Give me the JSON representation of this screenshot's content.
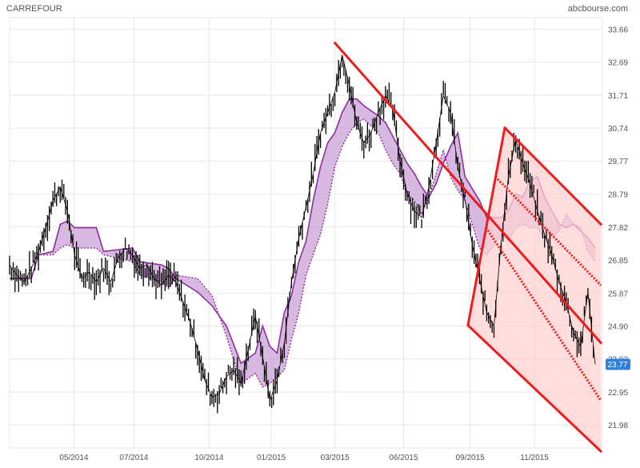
{
  "header": {
    "title": "CARREFOUR",
    "source": "abcbourse.com"
  },
  "chart_data": {
    "type": "candlestick",
    "title": "CARREFOUR",
    "source_label": "abcbourse.com",
    "grid": true,
    "y_axis_side": "right",
    "ylim": [
      21.3,
      34.0
    ],
    "y_ticks": [
      33.66,
      32.69,
      31.71,
      30.74,
      29.77,
      28.79,
      27.82,
      26.85,
      25.87,
      24.9,
      23.93,
      22.95,
      21.98
    ],
    "x_ticks": [
      "05/2014",
      "07/2014",
      "10/2014",
      "01/2015",
      "03/2015",
      "06/2015",
      "09/2015",
      "11/2015"
    ],
    "x_tick_pos": [
      8.9,
      17.2,
      27.6,
      36.2,
      45.0,
      54.5,
      63.7,
      72.6
    ],
    "xlim": [
      0,
      82
    ],
    "last_price": "23.77",
    "price_series": [
      [
        0,
        26.7
      ],
      [
        1,
        26.4
      ],
      [
        2,
        26.2
      ],
      [
        3,
        26.6
      ],
      [
        4,
        27.1
      ],
      [
        5,
        27.8
      ],
      [
        6,
        28.6
      ],
      [
        7,
        29.0
      ],
      [
        8,
        28.3
      ],
      [
        9,
        27.0
      ],
      [
        10,
        26.3
      ],
      [
        11,
        26.5
      ],
      [
        12,
        26.2
      ],
      [
        13,
        26.6
      ],
      [
        14,
        26.2
      ],
      [
        15,
        26.9
      ],
      [
        16,
        27.2
      ],
      [
        17,
        27.0
      ],
      [
        18,
        26.6
      ],
      [
        19,
        26.7
      ],
      [
        20,
        26.3
      ],
      [
        21,
        26.1
      ],
      [
        22,
        26.4
      ],
      [
        23,
        26.2
      ],
      [
        24,
        25.6
      ],
      [
        25,
        25.0
      ],
      [
        26,
        24.2
      ],
      [
        27,
        23.3
      ],
      [
        28,
        22.8
      ],
      [
        29,
        22.9
      ],
      [
        30,
        23.4
      ],
      [
        31,
        23.6
      ],
      [
        32,
        23.2
      ],
      [
        33,
        24.2
      ],
      [
        34,
        25.2
      ],
      [
        35,
        24.0
      ],
      [
        36,
        22.7
      ],
      [
        37,
        23.3
      ],
      [
        38,
        24.4
      ],
      [
        39,
        26.2
      ],
      [
        40,
        27.5
      ],
      [
        41,
        28.4
      ],
      [
        42,
        29.4
      ],
      [
        43,
        30.6
      ],
      [
        44,
        31.2
      ],
      [
        45,
        31.8
      ],
      [
        46,
        32.9
      ],
      [
        47,
        32.0
      ],
      [
        48,
        30.9
      ],
      [
        49,
        30.3
      ],
      [
        50,
        30.6
      ],
      [
        51,
        31.2
      ],
      [
        52,
        31.7
      ],
      [
        53,
        31.3
      ],
      [
        54,
        29.8
      ],
      [
        55,
        28.8
      ],
      [
        56,
        28.3
      ],
      [
        57,
        28.1
      ],
      [
        58,
        29.0
      ],
      [
        59,
        30.3
      ],
      [
        60,
        31.7
      ],
      [
        61,
        31.2
      ],
      [
        62,
        29.6
      ],
      [
        63,
        28.6
      ],
      [
        64,
        27.3
      ],
      [
        65,
        26.3
      ],
      [
        66,
        25.3
      ],
      [
        67,
        24.9
      ],
      [
        68,
        27.4
      ],
      [
        69,
        29.3
      ],
      [
        70,
        30.4
      ],
      [
        71,
        29.7
      ],
      [
        72,
        29.1
      ],
      [
        73,
        28.3
      ],
      [
        74,
        27.6
      ],
      [
        75,
        27.0
      ],
      [
        76,
        26.2
      ],
      [
        77,
        25.6
      ],
      [
        78,
        24.7
      ],
      [
        79,
        24.3
      ],
      [
        80,
        25.9
      ],
      [
        81,
        23.77
      ]
    ],
    "cloud_a": [
      [
        0,
        26.3
      ],
      [
        3,
        26.3
      ],
      [
        4,
        27.0
      ],
      [
        6,
        27.1
      ],
      [
        7,
        27.9
      ],
      [
        8,
        28.0
      ],
      [
        9,
        27.8
      ],
      [
        12,
        27.8
      ],
      [
        13,
        27.1
      ],
      [
        17,
        27.2
      ],
      [
        18,
        26.8
      ],
      [
        21,
        26.7
      ],
      [
        22,
        26.6
      ],
      [
        23,
        26.3
      ],
      [
        26,
        25.9
      ],
      [
        28,
        25.5
      ],
      [
        30,
        24.9
      ],
      [
        32,
        23.8
      ],
      [
        34,
        24.1
      ],
      [
        35,
        24.9
      ],
      [
        36,
        24.3
      ],
      [
        37,
        24.1
      ],
      [
        38,
        25.3
      ],
      [
        39,
        25.8
      ],
      [
        40,
        26.8
      ],
      [
        41,
        27.4
      ],
      [
        42,
        28.6
      ],
      [
        43,
        29.6
      ],
      [
        44,
        30.3
      ],
      [
        45,
        30.6
      ],
      [
        46,
        31.2
      ],
      [
        47,
        31.6
      ],
      [
        48,
        31.6
      ],
      [
        49,
        31.4
      ],
      [
        51,
        31.1
      ],
      [
        52,
        30.9
      ],
      [
        53,
        30.5
      ],
      [
        54,
        30.1
      ],
      [
        55,
        29.7
      ],
      [
        56,
        29.4
      ],
      [
        57,
        29.0
      ],
      [
        58,
        28.7
      ],
      [
        59,
        29.1
      ],
      [
        60,
        29.7
      ],
      [
        61,
        30.2
      ],
      [
        62,
        30.6
      ],
      [
        63,
        29.3
      ],
      [
        65,
        28.6
      ],
      [
        66,
        28.1
      ],
      [
        68,
        28.1
      ],
      [
        69,
        28.3
      ],
      [
        70,
        28.8
      ],
      [
        71,
        28.7
      ],
      [
        72,
        29.2
      ],
      [
        73,
        29.3
      ],
      [
        74,
        28.7
      ],
      [
        75,
        28.3
      ],
      [
        76,
        27.9
      ],
      [
        77,
        27.8
      ],
      [
        78,
        27.9
      ],
      [
        79,
        27.7
      ],
      [
        80,
        27.5
      ],
      [
        81,
        27.2
      ]
    ],
    "cloud_b": [
      [
        0,
        26.3
      ],
      [
        3,
        26.3
      ],
      [
        4,
        27.0
      ],
      [
        6,
        27.0
      ],
      [
        7,
        27.2
      ],
      [
        8,
        27.3
      ],
      [
        9,
        27.2
      ],
      [
        12,
        27.2
      ],
      [
        13,
        27.0
      ],
      [
        17,
        26.8
      ],
      [
        18,
        26.4
      ],
      [
        21,
        26.2
      ],
      [
        22,
        26.0
      ],
      [
        23,
        26.4
      ],
      [
        26,
        26.3
      ],
      [
        28,
        25.8
      ],
      [
        30,
        24.6
      ],
      [
        32,
        23.2
      ],
      [
        34,
        23.5
      ],
      [
        35,
        23.1
      ],
      [
        36,
        23.2
      ],
      [
        37,
        23.4
      ],
      [
        38,
        23.6
      ],
      [
        39,
        24.5
      ],
      [
        40,
        25.3
      ],
      [
        41,
        26.4
      ],
      [
        42,
        27.0
      ],
      [
        43,
        27.6
      ],
      [
        44,
        28.5
      ],
      [
        45,
        29.6
      ],
      [
        46,
        30.2
      ],
      [
        47,
        30.6
      ],
      [
        48,
        30.9
      ],
      [
        49,
        31.0
      ],
      [
        51,
        30.6
      ],
      [
        52,
        30.1
      ],
      [
        53,
        29.7
      ],
      [
        54,
        29.4
      ],
      [
        55,
        28.8
      ],
      [
        56,
        28.6
      ],
      [
        57,
        28.2
      ],
      [
        58,
        28.7
      ],
      [
        59,
        29.4
      ],
      [
        60,
        30.1
      ],
      [
        61,
        29.3
      ],
      [
        62,
        28.9
      ],
      [
        63,
        28.6
      ],
      [
        65,
        27.2
      ],
      [
        66,
        27.0
      ],
      [
        68,
        27.6
      ],
      [
        69,
        27.4
      ],
      [
        70,
        27.8
      ],
      [
        71,
        27.9
      ],
      [
        72,
        27.8
      ],
      [
        73,
        27.8
      ],
      [
        74,
        27.5
      ],
      [
        75,
        27.5
      ],
      [
        76,
        27.7
      ],
      [
        77,
        28.2
      ],
      [
        78,
        27.9
      ],
      [
        79,
        27.8
      ],
      [
        80,
        27.1
      ],
      [
        81,
        26.8
      ]
    ],
    "channels": [
      {
        "name": "downtrend",
        "lines": [
          {
            "from": [
              45.0,
              33.25
            ],
            "to": [
              81.8,
              24.4
            ],
            "style": "solid"
          },
          {
            "from": [
              68.5,
              30.75
            ],
            "to": [
              81.8,
              27.9
            ],
            "style": "solid"
          }
        ]
      },
      {
        "name": "pitchfork",
        "pivot_top": [
          68.5,
          30.75
        ],
        "pivot_bottom": [
          63.4,
          24.92
        ],
        "end": [
          81.8,
          21.2
        ],
        "inner_lines": [
          {
            "from": [
              65.9,
              27.8
            ],
            "to": [
              81.8,
              22.7
            ],
            "style": "dotted"
          },
          {
            "from": [
              67.2,
              29.3
            ],
            "to": [
              81.8,
              26.1
            ],
            "style": "dotted"
          }
        ],
        "edge_lines": [
          {
            "from": [
              63.4,
              24.92
            ],
            "to": [
              68.5,
              30.75
            ],
            "style": "solid"
          },
          {
            "from": [
              63.4,
              24.92
            ],
            "to": [
              81.8,
              21.2
            ],
            "style": "solid"
          }
        ]
      }
    ],
    "colors": {
      "price": "#000000",
      "cloud_fill": "#c9a0d6",
      "cloud_edge": "#8d2f9b",
      "trendline": "#ee1c1c",
      "channel_fill": "#ffd2d2",
      "grid": "#e6e6e6",
      "axis_text": "#555555",
      "last_price_bg": "#2f7fdd"
    }
  }
}
